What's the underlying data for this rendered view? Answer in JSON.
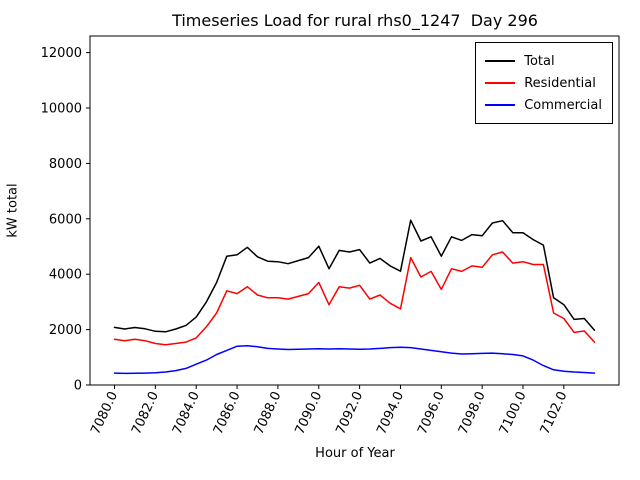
{
  "title": "Timeseries Load for rural rhs0_1247  Day 296",
  "chart_data": {
    "type": "line",
    "title": "Timeseries Load for rural rhs0_1247  Day 296",
    "xlabel": "Hour of Year",
    "ylabel": "kW total",
    "xlim": [
      7078.8,
      7104.7
    ],
    "ylim": [
      0,
      12600
    ],
    "grid": false,
    "legend_position": "upper right",
    "x_ticks": [
      7080,
      7082,
      7084,
      7086,
      7088,
      7090,
      7092,
      7094,
      7096,
      7098,
      7100,
      7102
    ],
    "x_tick_labels": [
      "7080.0",
      "7082.0",
      "7084.0",
      "7086.0",
      "7088.0",
      "7090.0",
      "7092.0",
      "7094.0",
      "7096.0",
      "7098.0",
      "7100.0",
      "7102.0"
    ],
    "y_ticks": [
      0,
      2000,
      4000,
      6000,
      8000,
      10000,
      12000
    ],
    "y_tick_labels": [
      "0",
      "2000",
      "4000",
      "6000",
      "8000",
      "10000",
      "12000"
    ],
    "x": [
      7080.0,
      7080.5,
      7081.0,
      7081.5,
      7082.0,
      7082.5,
      7083.0,
      7083.5,
      7084.0,
      7084.5,
      7085.0,
      7085.5,
      7086.0,
      7086.5,
      7087.0,
      7087.5,
      7088.0,
      7088.5,
      7089.0,
      7089.5,
      7090.0,
      7090.5,
      7091.0,
      7091.5,
      7092.0,
      7092.5,
      7093.0,
      7093.5,
      7094.0,
      7094.5,
      7095.0,
      7095.5,
      7096.0,
      7096.5,
      7097.0,
      7097.5,
      7098.0,
      7098.5,
      7099.0,
      7099.5,
      7100.0,
      7100.5,
      7101.0,
      7101.5,
      7102.0,
      7102.5,
      7103.0,
      7103.5
    ],
    "series": [
      {
        "name": "Total",
        "color": "#000000",
        "values": [
          2080,
          2020,
          2075,
          2030,
          1940,
          1920,
          2020,
          2150,
          2450,
          3000,
          3700,
          4650,
          4700,
          4970,
          4630,
          4470,
          4450,
          4380,
          4490,
          4600,
          5010,
          4200,
          4860,
          4800,
          4890,
          4400,
          4570,
          4300,
          4110,
          5950,
          5200,
          5350,
          4650,
          5350,
          5220,
          5430,
          5390,
          5850,
          5930,
          5500,
          5500,
          5250,
          5050,
          3150,
          2900,
          2370,
          2400,
          1980
        ]
      },
      {
        "name": "Residential",
        "color": "#ff0000",
        "values": [
          1650,
          1600,
          1650,
          1600,
          1500,
          1450,
          1500,
          1550,
          1700,
          2100,
          2600,
          3400,
          3300,
          3550,
          3250,
          3150,
          3150,
          3100,
          3200,
          3300,
          3700,
          2900,
          3550,
          3500,
          3600,
          3100,
          3250,
          2950,
          2750,
          4600,
          3900,
          4100,
          3450,
          4200,
          4100,
          4300,
          4250,
          4700,
          4800,
          4400,
          4450,
          4350,
          4350,
          2600,
          2400,
          1900,
          1950,
          1550
        ]
      },
      {
        "name": "Commercial",
        "color": "#0000ff",
        "values": [
          430,
          420,
          425,
          430,
          440,
          470,
          520,
          600,
          750,
          900,
          1100,
          1250,
          1400,
          1420,
          1380,
          1320,
          1300,
          1280,
          1290,
          1300,
          1310,
          1300,
          1310,
          1300,
          1290,
          1300,
          1320,
          1350,
          1360,
          1350,
          1300,
          1250,
          1200,
          1150,
          1120,
          1130,
          1140,
          1150,
          1130,
          1100,
          1050,
          900,
          700,
          550,
          500,
          470,
          450,
          430
        ]
      }
    ]
  }
}
